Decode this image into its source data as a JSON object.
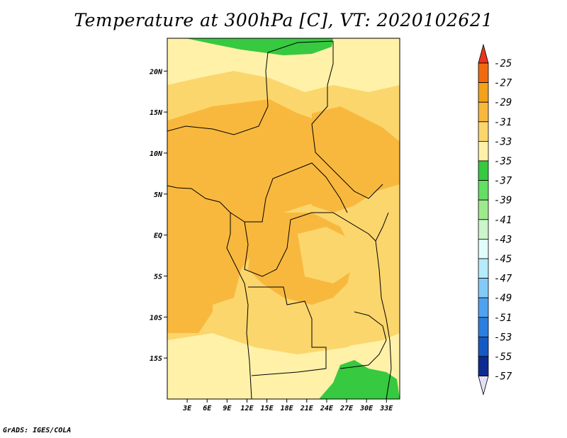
{
  "title": "Temperature at 300hPa [C], VT: 2020102621",
  "credit": "GrADS: IGES/COLA",
  "map": {
    "lon_range": [
      0,
      35
    ],
    "lat_range": [
      -20,
      24
    ],
    "lon_ticks": [
      "3E",
      "6E",
      "9E",
      "12E",
      "15E",
      "18E",
      "21E",
      "24E",
      "27E",
      "30E",
      "33E"
    ],
    "lon_tick_values": [
      3,
      6,
      9,
      12,
      15,
      18,
      21,
      24,
      27,
      30,
      33
    ],
    "lat_ticks": [
      "20N",
      "15N",
      "10N",
      "5N",
      "EQ",
      "5S",
      "10S",
      "15S"
    ],
    "lat_tick_values": [
      20,
      15,
      10,
      5,
      0,
      -5,
      -10,
      -15
    ]
  },
  "colorbar": {
    "labels": [
      "-25",
      "-27",
      "-29",
      "-31",
      "-33",
      "-35",
      "-37",
      "-39",
      "-41",
      "-43",
      "-45",
      "-47",
      "-49",
      "-51",
      "-53",
      "-55",
      "-57"
    ],
    "colors": [
      "#e8361c",
      "#f06a10",
      "#f4a21b",
      "#f8b83e",
      "#fbd66c",
      "#fff1a8",
      "#37c940",
      "#64de64",
      "#9ee98c",
      "#cbf5cb",
      "#e1fcfd",
      "#b5ebfb",
      "#83cbf7",
      "#4fa2f0",
      "#2c7ee0",
      "#1659c2",
      "#0d2a91",
      "#0a146e",
      "#e2e0f8"
    ]
  }
}
